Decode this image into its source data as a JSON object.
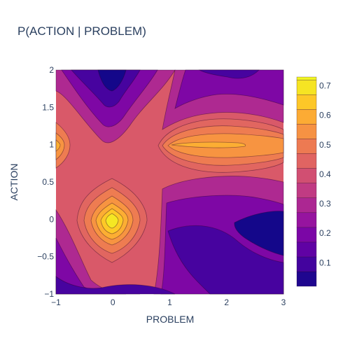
{
  "chart_data": {
    "type": "contour",
    "title": "P(ACTION | PROBLEM)",
    "xlabel": "PROBLEM",
    "ylabel": "ACTION",
    "x_range": [
      -1,
      3
    ],
    "y_range": [
      -1,
      2
    ],
    "x_ticks": [
      "−1",
      "0",
      "1",
      "2",
      "3"
    ],
    "x_tick_values": [
      -1,
      0,
      1,
      2,
      3
    ],
    "y_ticks": [
      "−1",
      "−0.5",
      "0",
      "0.5",
      "1",
      "1.5",
      "2"
    ],
    "y_tick_values": [
      -1,
      -0.5,
      0,
      0.5,
      1,
      1.5,
      2
    ],
    "colorbar": {
      "range": [
        0.02,
        0.73
      ],
      "ticks": [
        "0.1",
        "0.2",
        "0.3",
        "0.4",
        "0.5",
        "0.6",
        "0.7"
      ],
      "tick_values": [
        0.1,
        0.2,
        0.3,
        0.4,
        0.5,
        0.6,
        0.7
      ],
      "contour_step": 0.05,
      "colorscale": [
        "#0d0887",
        "#46039f",
        "#7201a8",
        "#9c179e",
        "#bd3786",
        "#d8576b",
        "#ed7953",
        "#fb9f3a",
        "#fdca26",
        "#f0f921"
      ]
    },
    "features": [
      {
        "kind": "peak",
        "x": 0,
        "y": 0,
        "value": 0.73
      },
      {
        "kind": "ridge",
        "x_from": 1,
        "x_to": 2.4,
        "y": 1,
        "value": 0.6
      },
      {
        "kind": "peak",
        "x": -1,
        "y": 1,
        "value": 0.6
      },
      {
        "kind": "band",
        "y": 0.45,
        "value": 0.45
      },
      {
        "kind": "trough",
        "x": 0,
        "y": 2,
        "value": 0.03
      },
      {
        "kind": "trough",
        "x": 2,
        "y": 2,
        "value": 0.1
      },
      {
        "kind": "trough",
        "x": 3,
        "y": -0.1,
        "value": 0.03
      }
    ]
  }
}
